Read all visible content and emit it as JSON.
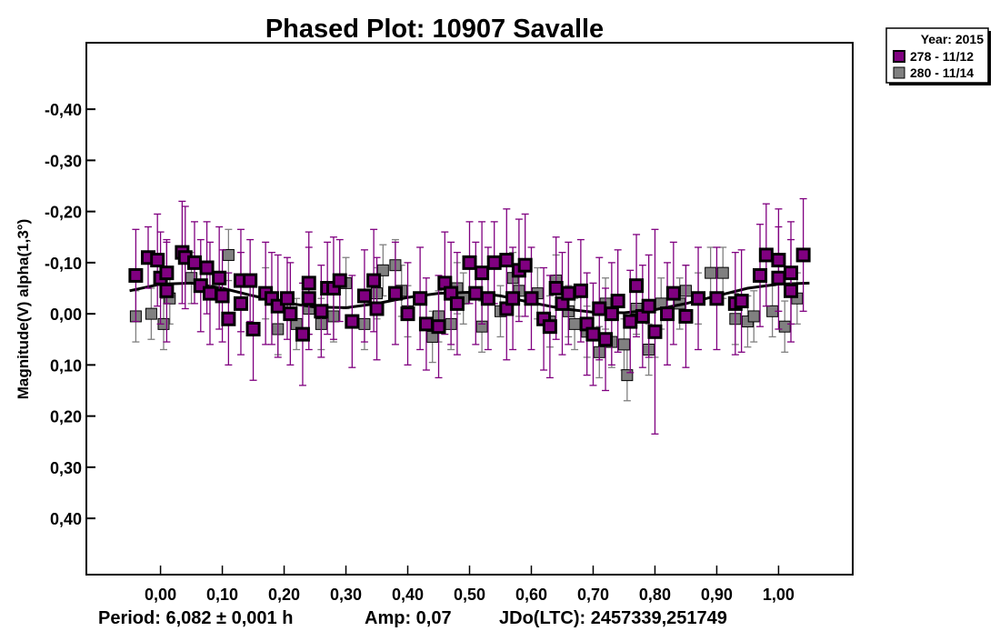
{
  "chart_data": {
    "type": "scatter",
    "title": "Phased Plot: 10907 Savalle",
    "ylabel": "Magnitude(V) alpha(1,3°)",
    "xlabel": "",
    "xlim": [
      -0.12,
      1.12
    ],
    "ylim": [
      -0.53,
      0.51
    ],
    "y_inverted": true,
    "x_ticks": [
      0,
      0.1,
      0.2,
      0.3,
      0.4,
      0.5,
      0.6,
      0.7,
      0.8,
      0.9,
      1.0
    ],
    "x_tick_labels": [
      "0,00",
      "0,10",
      "0,20",
      "0,30",
      "0,40",
      "0,50",
      "0,60",
      "0,70",
      "0,80",
      "0,90",
      "1,00"
    ],
    "y_ticks": [
      -0.4,
      -0.3,
      -0.2,
      -0.1,
      0,
      0.1,
      0.2,
      0.3,
      0.4
    ],
    "y_tick_labels": [
      "-0,40",
      "-0,30",
      "-0,20",
      "-0,10",
      "0,00",
      "0,10",
      "0,20",
      "0,30",
      "0,40"
    ],
    "grid": false,
    "legend": {
      "title": "Year: 2015",
      "placement": "top-right-outside"
    },
    "footer": {
      "period": "Period: 6,082 ± 0,001 h",
      "amp": "Amp: 0,07",
      "jdo": "JDo(LTC): 2457339,251749"
    },
    "fit_curve": [
      [
        -0.05,
        -0.045
      ],
      [
        0.0,
        -0.058
      ],
      [
        0.05,
        -0.06
      ],
      [
        0.1,
        -0.05
      ],
      [
        0.15,
        -0.035
      ],
      [
        0.2,
        -0.022
      ],
      [
        0.25,
        -0.013
      ],
      [
        0.3,
        -0.012
      ],
      [
        0.35,
        -0.02
      ],
      [
        0.4,
        -0.032
      ],
      [
        0.45,
        -0.04
      ],
      [
        0.5,
        -0.042
      ],
      [
        0.55,
        -0.035
      ],
      [
        0.6,
        -0.022
      ],
      [
        0.65,
        -0.01
      ],
      [
        0.7,
        -0.003
      ],
      [
        0.75,
        -0.002
      ],
      [
        0.8,
        -0.008
      ],
      [
        0.85,
        -0.02
      ],
      [
        0.9,
        -0.035
      ],
      [
        0.95,
        -0.05
      ],
      [
        1.0,
        -0.058
      ],
      [
        1.05,
        -0.06
      ]
    ],
    "series": [
      {
        "name": "278 - 11/12",
        "color": "#800080",
        "points": [
          [
            -0.04,
            -0.075,
            0.09
          ],
          [
            -0.02,
            -0.11,
            0.06
          ],
          [
            -0.005,
            -0.105,
            0.09
          ],
          [
            0.0,
            -0.07,
            0.09
          ],
          [
            0.01,
            -0.08,
            0.06
          ],
          [
            0.01,
            -0.045,
            0.1
          ],
          [
            0.035,
            -0.12,
            0.1
          ],
          [
            0.04,
            -0.11,
            0.1
          ],
          [
            0.055,
            -0.1,
            0.08
          ],
          [
            0.065,
            -0.055,
            0.09
          ],
          [
            0.075,
            -0.09,
            0.09
          ],
          [
            0.08,
            -0.04,
            0.1
          ],
          [
            0.095,
            -0.07,
            0.1
          ],
          [
            0.1,
            -0.035,
            0.09
          ],
          [
            0.11,
            0.01,
            0.09
          ],
          [
            0.13,
            -0.065,
            0.1
          ],
          [
            0.13,
            -0.02,
            0.1
          ],
          [
            0.145,
            -0.065,
            0.08
          ],
          [
            0.15,
            0.03,
            0.1
          ],
          [
            0.17,
            -0.04,
            0.1
          ],
          [
            0.18,
            -0.03,
            0.09
          ],
          [
            0.19,
            -0.015,
            0.1
          ],
          [
            0.205,
            -0.03,
            0.08
          ],
          [
            0.21,
            0.0,
            0.1
          ],
          [
            0.23,
            0.04,
            0.1
          ],
          [
            0.24,
            -0.06,
            0.1
          ],
          [
            0.24,
            -0.03,
            0.1
          ],
          [
            0.26,
            -0.005,
            0.09
          ],
          [
            0.27,
            -0.05,
            0.09
          ],
          [
            0.28,
            -0.05,
            0.1
          ],
          [
            0.29,
            -0.065,
            0.08
          ],
          [
            0.31,
            0.015,
            0.09
          ],
          [
            0.33,
            -0.035,
            0.09
          ],
          [
            0.345,
            -0.065,
            0.1
          ],
          [
            0.35,
            -0.01,
            0.1
          ],
          [
            0.38,
            -0.04,
            0.1
          ],
          [
            0.4,
            0.0,
            0.1
          ],
          [
            0.42,
            -0.03,
            0.1
          ],
          [
            0.43,
            0.02,
            0.09
          ],
          [
            0.45,
            0.025,
            0.1
          ],
          [
            0.46,
            -0.06,
            0.1
          ],
          [
            0.47,
            -0.04,
            0.1
          ],
          [
            0.48,
            -0.02,
            0.1
          ],
          [
            0.5,
            -0.1,
            0.08
          ],
          [
            0.51,
            -0.04,
            0.1
          ],
          [
            0.52,
            -0.08,
            0.1
          ],
          [
            0.53,
            -0.03,
            0.1
          ],
          [
            0.54,
            -0.1,
            0.08
          ],
          [
            0.56,
            -0.105,
            0.1
          ],
          [
            0.56,
            -0.01,
            0.1
          ],
          [
            0.57,
            -0.03,
            0.1
          ],
          [
            0.58,
            -0.085,
            0.1
          ],
          [
            0.59,
            -0.095,
            0.1
          ],
          [
            0.6,
            -0.03,
            0.1
          ],
          [
            0.62,
            0.01,
            0.1
          ],
          [
            0.63,
            0.025,
            0.1
          ],
          [
            0.64,
            -0.05,
            0.1
          ],
          [
            0.65,
            -0.02,
            0.1
          ],
          [
            0.66,
            -0.04,
            0.1
          ],
          [
            0.68,
            -0.045,
            0.1
          ],
          [
            0.69,
            0.02,
            0.1
          ],
          [
            0.7,
            0.04,
            0.1
          ],
          [
            0.71,
            -0.01,
            0.1
          ],
          [
            0.72,
            0.05,
            0.1
          ],
          [
            0.73,
            0.0,
            0.1
          ],
          [
            0.74,
            -0.025,
            0.1
          ],
          [
            0.76,
            0.015,
            0.1
          ],
          [
            0.77,
            -0.055,
            0.1
          ],
          [
            0.78,
            0.005,
            0.1
          ],
          [
            0.79,
            -0.015,
            0.1
          ],
          [
            0.8,
            0.035,
            0.2
          ],
          [
            0.82,
            0.0,
            0.1
          ],
          [
            0.83,
            -0.04,
            0.1
          ],
          [
            0.85,
            0.005,
            0.1
          ],
          [
            0.87,
            -0.03,
            0.1
          ],
          [
            0.9,
            -0.03,
            0.1
          ],
          [
            0.93,
            -0.02,
            0.1
          ],
          [
            0.94,
            -0.025,
            0.1
          ],
          [
            0.97,
            -0.075,
            0.1
          ],
          [
            0.98,
            -0.115,
            0.1
          ],
          [
            1.0,
            -0.105,
            0.1
          ],
          [
            1.0,
            -0.07,
            0.1
          ],
          [
            1.02,
            -0.08,
            0.1
          ],
          [
            1.02,
            -0.045,
            0.1
          ],
          [
            1.04,
            -0.115,
            0.11
          ]
        ]
      },
      {
        "name": "280 - 11/14",
        "color": "#808080",
        "points": [
          [
            -0.04,
            0.005,
            0.05
          ],
          [
            -0.015,
            0.0,
            0.05
          ],
          [
            0.005,
            0.02,
            0.05
          ],
          [
            0.015,
            -0.03,
            0.05
          ],
          [
            0.05,
            -0.07,
            0.05
          ],
          [
            0.11,
            -0.115,
            0.05
          ],
          [
            0.17,
            -0.04,
            0.05
          ],
          [
            0.19,
            0.03,
            0.05
          ],
          [
            0.22,
            0.02,
            0.05
          ],
          [
            0.24,
            -0.01,
            0.05
          ],
          [
            0.26,
            0.02,
            0.05
          ],
          [
            0.28,
            0.005,
            0.05
          ],
          [
            0.3,
            -0.06,
            0.05
          ],
          [
            0.33,
            0.02,
            0.05
          ],
          [
            0.35,
            -0.04,
            0.05
          ],
          [
            0.36,
            -0.085,
            0.05
          ],
          [
            0.38,
            -0.095,
            0.05
          ],
          [
            0.39,
            -0.045,
            0.05
          ],
          [
            0.4,
            -0.005,
            0.05
          ],
          [
            0.44,
            0.045,
            0.05
          ],
          [
            0.45,
            0.005,
            0.05
          ],
          [
            0.47,
            0.02,
            0.05
          ],
          [
            0.48,
            -0.05,
            0.05
          ],
          [
            0.49,
            -0.03,
            0.05
          ],
          [
            0.52,
            0.025,
            0.05
          ],
          [
            0.55,
            -0.005,
            0.05
          ],
          [
            0.57,
            -0.07,
            0.05
          ],
          [
            0.58,
            -0.045,
            0.05
          ],
          [
            0.61,
            -0.04,
            0.05
          ],
          [
            0.63,
            0.015,
            0.05
          ],
          [
            0.64,
            -0.065,
            0.05
          ],
          [
            0.66,
            -0.005,
            0.05
          ],
          [
            0.67,
            0.02,
            0.05
          ],
          [
            0.69,
            0.035,
            0.05
          ],
          [
            0.71,
            0.075,
            0.05
          ],
          [
            0.72,
            -0.02,
            0.05
          ],
          [
            0.73,
            0.055,
            0.05
          ],
          [
            0.75,
            0.06,
            0.05
          ],
          [
            0.755,
            0.12,
            0.05
          ],
          [
            0.77,
            -0.01,
            0.05
          ],
          [
            0.79,
            0.07,
            0.05
          ],
          [
            0.8,
            0.035,
            0.05
          ],
          [
            0.81,
            -0.02,
            0.05
          ],
          [
            0.84,
            -0.02,
            0.05
          ],
          [
            0.85,
            -0.045,
            0.05
          ],
          [
            0.87,
            -0.03,
            0.05
          ],
          [
            0.89,
            -0.08,
            0.05
          ],
          [
            0.91,
            -0.08,
            0.05
          ],
          [
            0.93,
            0.01,
            0.05
          ],
          [
            0.95,
            0.015,
            0.05
          ],
          [
            0.96,
            0.005,
            0.05
          ],
          [
            0.99,
            -0.005,
            0.05
          ],
          [
            1.01,
            0.025,
            0.05
          ],
          [
            1.03,
            -0.03,
            0.05
          ]
        ]
      }
    ]
  }
}
